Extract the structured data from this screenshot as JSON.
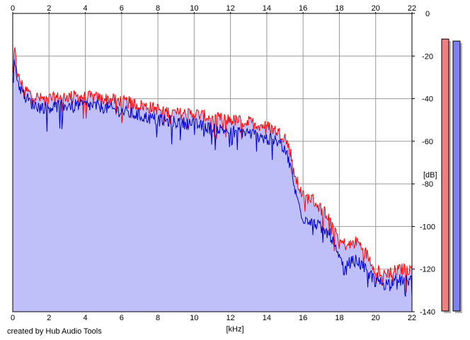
{
  "chart_data": {
    "type": "area",
    "xlabel": "[kHz]",
    "ylabel": "[dB]",
    "xlim": [
      0,
      22
    ],
    "ylim": [
      -140,
      0
    ],
    "x_ticks": [
      "0",
      "2",
      "4",
      "6",
      "8",
      "10",
      "12",
      "14",
      "16",
      "18",
      "20",
      "22"
    ],
    "y_ticks": [
      "0",
      "-20",
      "-40",
      "-60",
      "-80",
      "-100",
      "-120",
      "-140"
    ],
    "grid": true,
    "series": [
      {
        "channel": "red",
        "color": "#ff0000",
        "x": [
          0,
          0.1,
          0.3,
          0.6,
          1,
          1.5,
          2,
          3,
          4,
          5,
          6,
          7,
          8,
          9,
          10,
          11,
          12,
          13,
          14,
          14.5,
          15,
          15.3,
          15.6,
          16,
          16.5,
          17,
          17.5,
          18,
          18.5,
          19,
          19.5,
          20,
          20.5,
          21,
          21.5,
          22
        ],
        "y": [
          -25,
          -17,
          -30,
          -35,
          -38,
          -40,
          -40,
          -39,
          -39,
          -40,
          -41,
          -43,
          -45,
          -47,
          -47,
          -49,
          -50,
          -51,
          -53,
          -55,
          -58,
          -65,
          -78,
          -86,
          -87,
          -92,
          -95,
          -107,
          -109,
          -107,
          -113,
          -120,
          -122,
          -121,
          -120,
          -120
        ]
      },
      {
        "channel": "blue",
        "color": "#0000cc",
        "x": [
          0,
          0.1,
          0.3,
          0.6,
          1,
          1.5,
          2,
          3,
          4,
          5,
          6,
          7,
          8,
          9,
          10,
          11,
          12,
          13,
          14,
          14.5,
          15,
          15.3,
          15.6,
          16,
          16.5,
          17,
          17.5,
          18,
          18.5,
          19,
          19.5,
          20,
          20.5,
          21,
          21.5,
          22
        ],
        "y": [
          -27,
          -22,
          -33,
          -38,
          -42,
          -44,
          -44,
          -43,
          -43,
          -44,
          -46,
          -48,
          -50,
          -51,
          -52,
          -54,
          -55,
          -56,
          -59,
          -60,
          -63,
          -72,
          -85,
          -96,
          -97,
          -101,
          -104,
          -116,
          -117,
          -116,
          -121,
          -125,
          -127,
          -126,
          -125,
          -125
        ]
      }
    ],
    "fill_color": "#bfbffa",
    "level_meters": [
      {
        "channel": "left",
        "color": "#f08080",
        "level_db": -6
      },
      {
        "channel": "right",
        "color": "#8080f0",
        "level_db": -7
      }
    ]
  },
  "footer": {
    "credit": "created by Hub Audio Tools"
  }
}
